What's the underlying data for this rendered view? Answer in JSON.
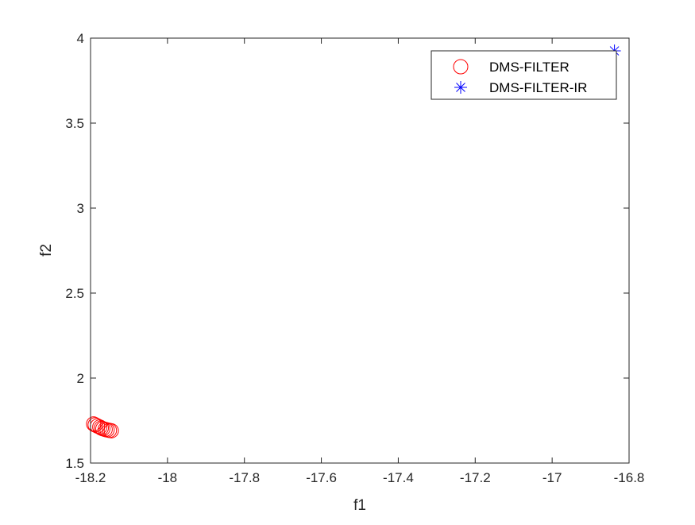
{
  "chart_data": {
    "type": "scatter",
    "title": "",
    "xlabel": "f1",
    "ylabel": "f2",
    "xlim": [
      -18.2,
      -16.8
    ],
    "ylim": [
      1.5,
      4.0
    ],
    "x_ticks": [
      -18.2,
      -18.0,
      -17.8,
      -17.6,
      -17.4,
      -17.2,
      -17.0,
      -16.8
    ],
    "x_tick_labels": [
      "-18.2",
      "-18",
      "-17.8",
      "-17.6",
      "-17.4",
      "-17.2",
      "-17",
      "-16.8"
    ],
    "y_ticks": [
      1.5,
      2.0,
      2.5,
      3.0,
      3.5,
      4.0
    ],
    "y_tick_labels": [
      "1.5",
      "2",
      "2.5",
      "3",
      "3.5",
      "4"
    ],
    "grid": false,
    "legend_position": "top-right",
    "series": [
      {
        "name": "DMS-FILTER",
        "marker": "circle",
        "color": "#ff0000",
        "x": [
          -18.192,
          -18.188,
          -18.182,
          -18.176,
          -18.172,
          -18.168,
          -18.162,
          -18.157,
          -18.151,
          -18.146
        ],
        "y": [
          1.73,
          1.725,
          1.718,
          1.712,
          1.706,
          1.702,
          1.698,
          1.695,
          1.692,
          1.69
        ]
      },
      {
        "name": "DMS-FILTER-IR",
        "marker": "asterisk",
        "color": "#0000ff",
        "x": [
          -16.838
        ],
        "y": [
          3.925
        ]
      }
    ]
  }
}
